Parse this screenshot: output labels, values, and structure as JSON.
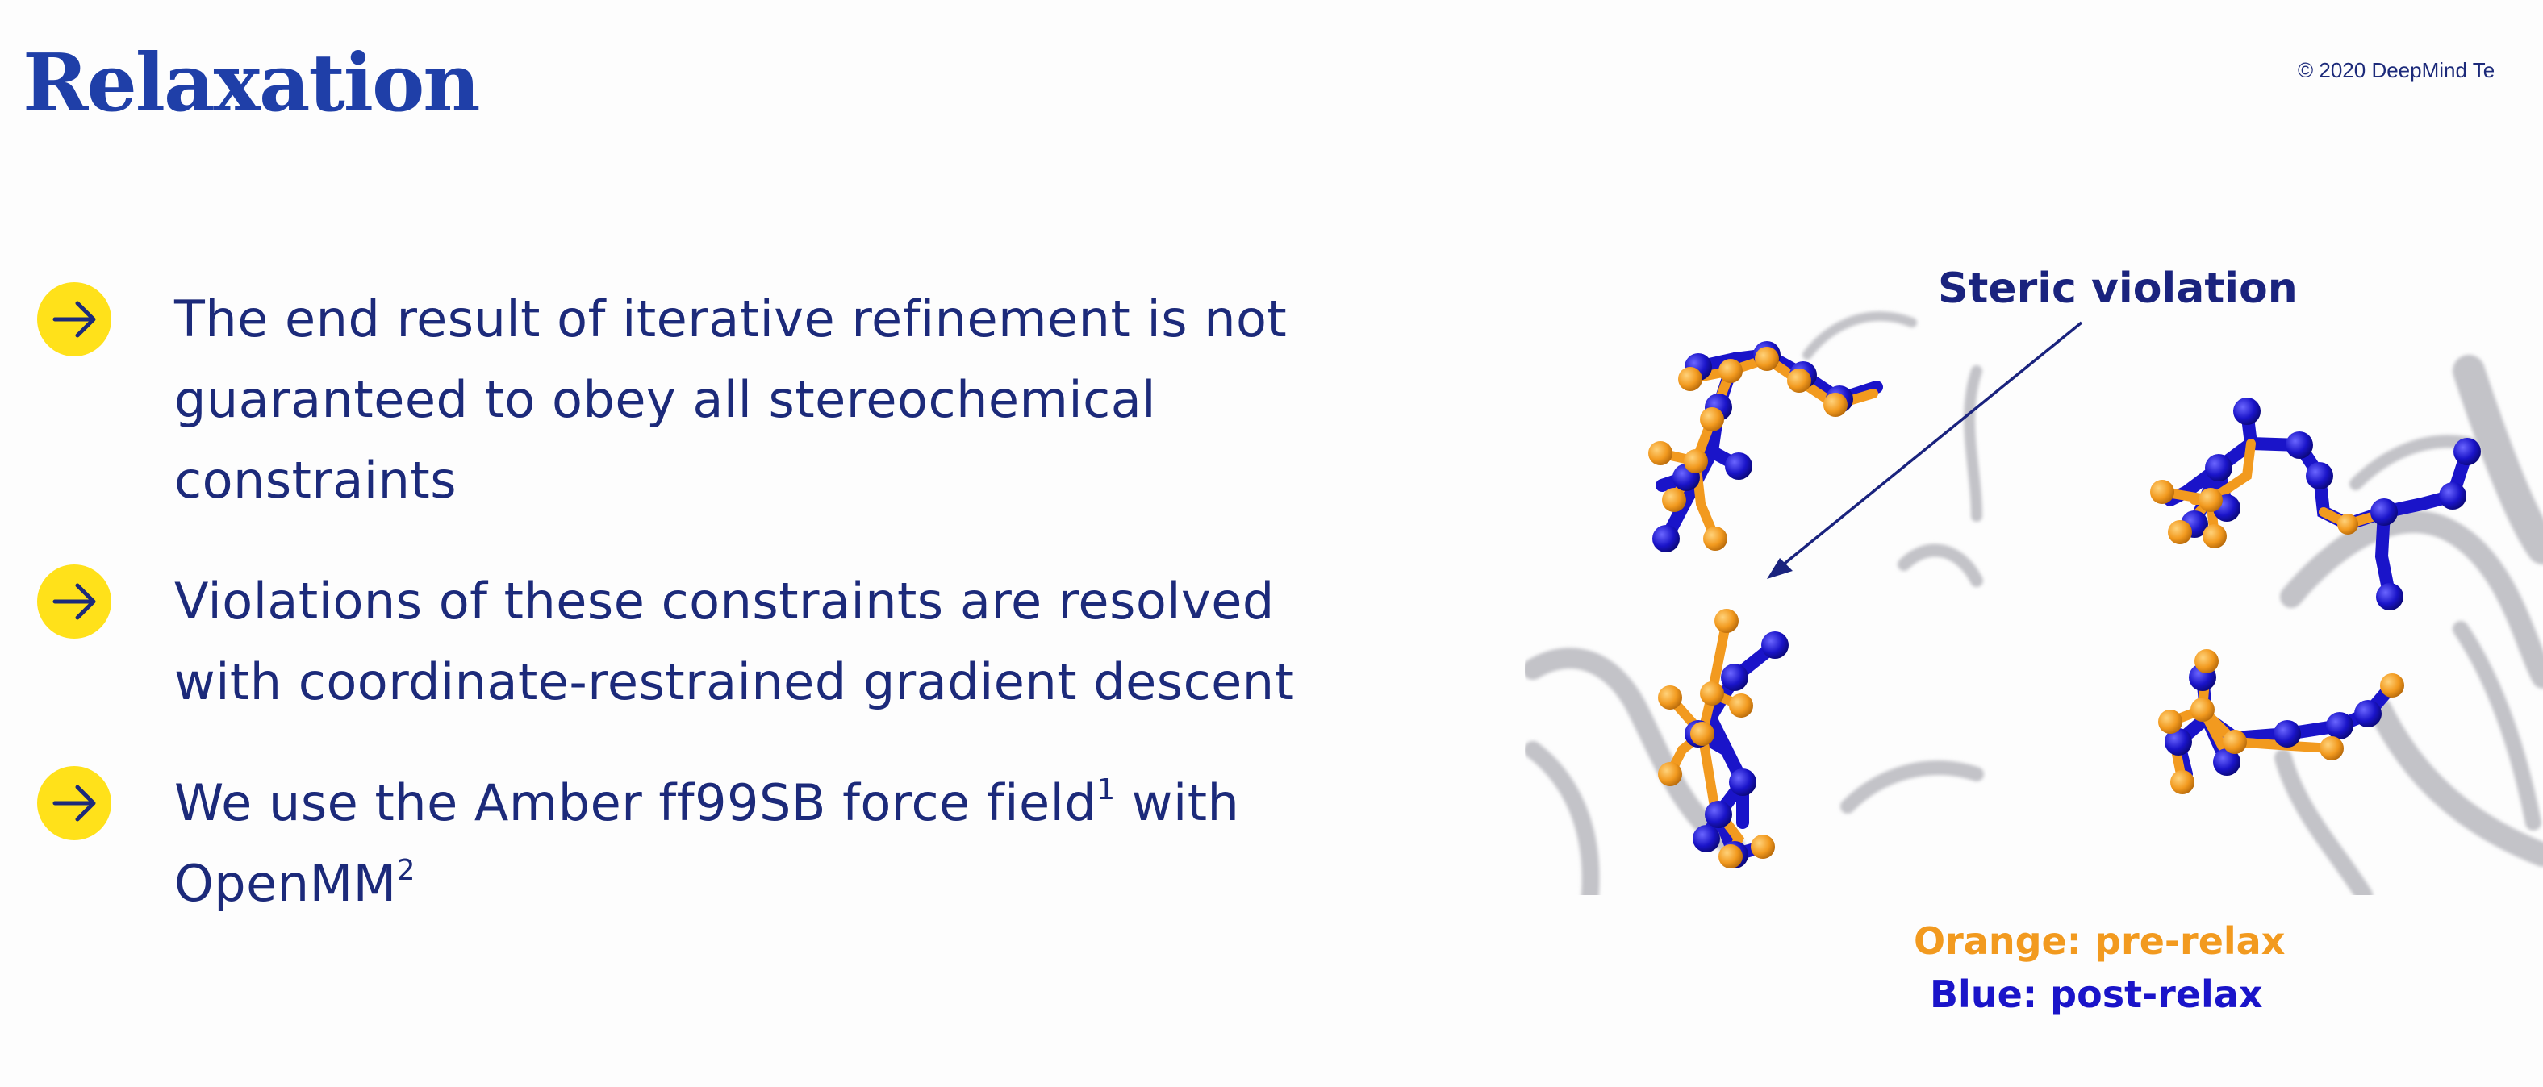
{
  "slide": {
    "title": "Relaxation",
    "copyright": "© 2020 DeepMind Te"
  },
  "bullets": [
    {
      "icon": "arrow-right-icon",
      "lines": [
        "The end result of iterative refinement is not",
        "guaranteed to obey all stereochemical",
        "constraints"
      ]
    },
    {
      "icon": "arrow-right-icon",
      "lines": [
        "Violations of these constraints are resolved",
        "with coordinate-restrained gradient descent"
      ]
    },
    {
      "icon": "arrow-right-icon",
      "line1_text": "We use the Amber ff99SB force field",
      "line1_sup": "1",
      "line1_suffix": " with",
      "line2_text": "OpenMM",
      "line2_sup": "2"
    }
  ],
  "figure": {
    "annotation": "Steric violation",
    "legend_orange": "Orange: pre-relax",
    "legend_blue": "Blue: post-relax"
  },
  "colors": {
    "title": "#1f3fa8",
    "text": "#1c2a7a",
    "bullet_circle": "#ffe11a",
    "orange": "#f29a1f",
    "blue": "#1a14c9",
    "ribbon": "#c8c8cc"
  }
}
